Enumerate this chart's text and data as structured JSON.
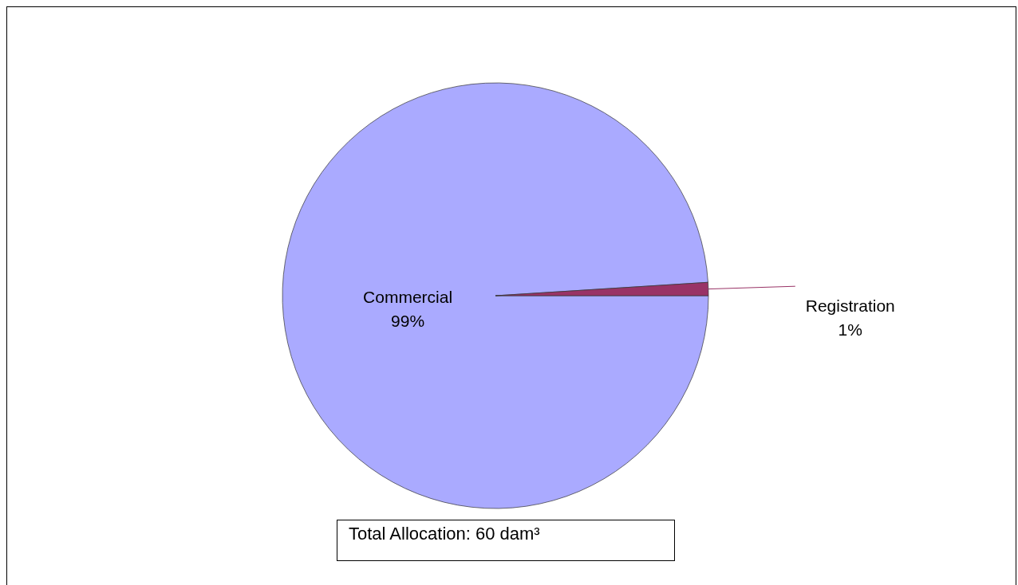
{
  "chart_data": {
    "type": "pie",
    "categories": [
      "Commercial",
      "Registration"
    ],
    "values": [
      99,
      1
    ],
    "value_labels": [
      "99%",
      "1%"
    ],
    "colors": [
      "#aaaaff",
      "#993366"
    ],
    "annotations": [
      "Total Allocation: 60 dam³"
    ]
  }
}
